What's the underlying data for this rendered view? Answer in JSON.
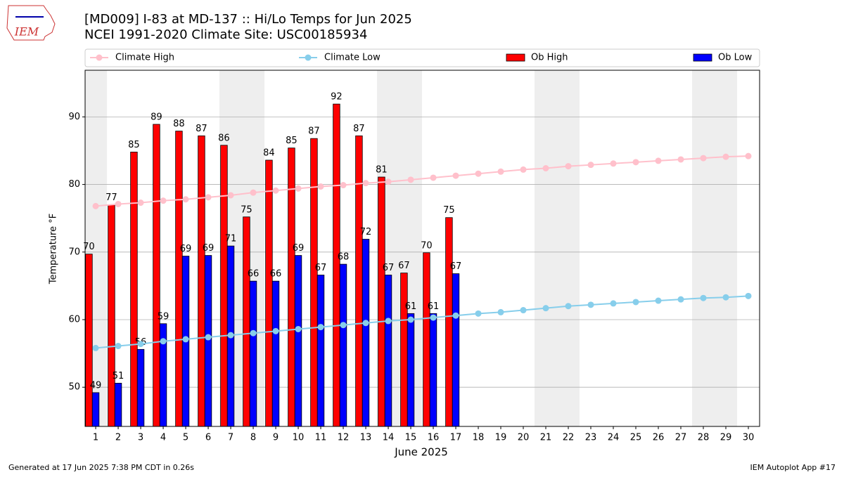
{
  "header": {
    "logo": "IEM"
  },
  "chart_data": {
    "type": "bar",
    "title": "[MD009] I-83 at MD-137 :: Hi/Lo Temps for Jun 2025",
    "subtitle": "NCEI 1991-2020 Climate Site: USC00185934",
    "x_label": "June 2025",
    "y_label": "Temperature °F",
    "x": [
      1,
      2,
      3,
      4,
      5,
      6,
      7,
      8,
      9,
      10,
      11,
      12,
      13,
      14,
      15,
      16,
      17,
      18,
      19,
      20,
      21,
      22,
      23,
      24,
      25,
      26,
      27,
      28,
      29,
      30
    ],
    "xlim": [
      0.53,
      30.5
    ],
    "xticks": [
      1,
      2,
      3,
      4,
      5,
      6,
      7,
      8,
      9,
      10,
      11,
      12,
      13,
      14,
      15,
      16,
      17,
      18,
      19,
      20,
      21,
      22,
      23,
      24,
      25,
      26,
      27,
      28,
      29,
      30
    ],
    "ylim": [
      44.2,
      96.9
    ],
    "yticks": [
      50,
      60,
      70,
      80,
      90
    ],
    "grid": true,
    "shaded_days": [
      1,
      7,
      8,
      14,
      15,
      21,
      22,
      28,
      29
    ],
    "series": [
      {
        "name": "Climate High",
        "type": "line",
        "color": "#ffc0cb",
        "values": [
          76.8,
          77.1,
          77.3,
          77.6,
          77.8,
          78.1,
          78.4,
          78.8,
          79.1,
          79.4,
          79.7,
          79.9,
          80.2,
          80.4,
          80.7,
          81.0,
          81.3,
          81.6,
          81.9,
          82.2,
          82.4,
          82.7,
          82.9,
          83.1,
          83.3,
          83.5,
          83.7,
          83.9,
          84.1,
          84.2
        ]
      },
      {
        "name": "Climate Low",
        "type": "line",
        "color": "#87ceeb",
        "values": [
          55.8,
          56.1,
          56.4,
          56.8,
          57.1,
          57.4,
          57.7,
          58.0,
          58.3,
          58.6,
          58.9,
          59.2,
          59.5,
          59.8,
          60.0,
          60.3,
          60.6,
          60.9,
          61.1,
          61.4,
          61.7,
          62.0,
          62.2,
          62.4,
          62.6,
          62.8,
          63.0,
          63.2,
          63.3,
          63.5
        ]
      },
      {
        "name": "Ob High",
        "type": "bar",
        "color": "#ff0000",
        "values": [
          69.7,
          77.0,
          84.8,
          88.9,
          87.9,
          87.2,
          85.8,
          75.2,
          83.6,
          85.4,
          86.8,
          91.9,
          87.2,
          81.1,
          66.9,
          69.9,
          75.1,
          null,
          null,
          null,
          null,
          null,
          null,
          null,
          null,
          null,
          null,
          null,
          null,
          null
        ],
        "value_labels": [
          "70",
          "77",
          "85",
          "89",
          "88",
          "87",
          "86",
          "75",
          "84",
          "85",
          "87",
          "92",
          "87",
          "81",
          "67",
          "70",
          "75",
          null,
          null,
          null,
          null,
          null,
          null,
          null,
          null,
          null,
          null,
          null,
          null,
          null
        ]
      },
      {
        "name": "Ob Low",
        "type": "bar",
        "color": "#0000ff",
        "values": [
          49.2,
          50.6,
          55.6,
          59.4,
          69.4,
          69.5,
          70.9,
          65.7,
          65.7,
          69.5,
          66.6,
          68.2,
          71.9,
          66.6,
          60.9,
          60.9,
          66.8,
          null,
          null,
          null,
          null,
          null,
          null,
          null,
          null,
          null,
          null,
          null,
          null,
          null
        ],
        "value_labels": [
          "49",
          "51",
          "56",
          "59",
          "69",
          "69",
          "71",
          "66",
          "66",
          "69",
          "67",
          "68",
          "72",
          "67",
          "61",
          "61",
          "67",
          null,
          null,
          null,
          null,
          null,
          null,
          null,
          null,
          null,
          null,
          null,
          null,
          null
        ]
      }
    ]
  },
  "footer": {
    "left": "Generated at 17 Jun 2025 7:38 PM CDT in 0.26s",
    "right": "IEM Autoplot App #17"
  }
}
